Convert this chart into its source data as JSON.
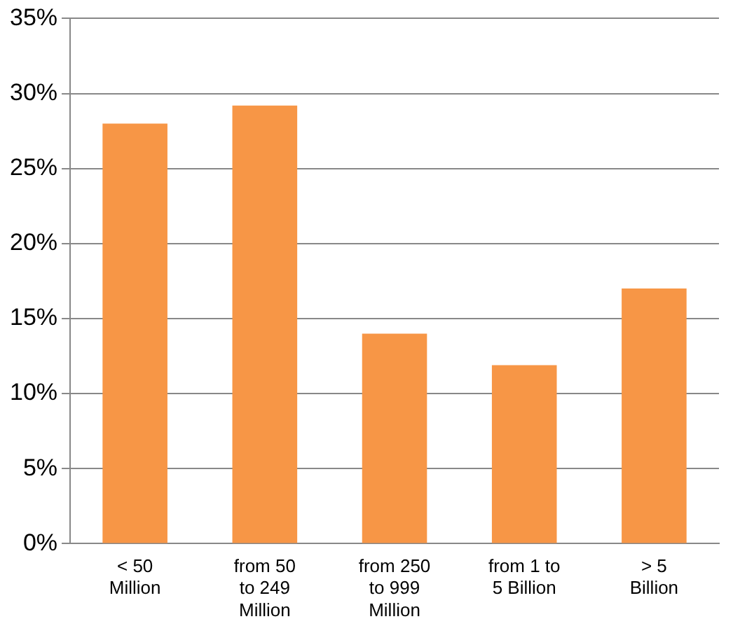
{
  "chart_data": {
    "type": "bar",
    "categories": [
      "< 50 Million",
      "from 50 to 249 Million",
      "from 250 to 999 Million",
      "from 1 to 5 Billion",
      "> 5 Billion"
    ],
    "values": [
      28,
      29.2,
      14,
      11.9,
      17
    ],
    "color": "#f79646",
    "ylim": [
      0,
      35
    ],
    "yticks": [
      {
        "value": 0,
        "label": "0%"
      },
      {
        "value": 5,
        "label": "5%"
      },
      {
        "value": 10,
        "label": "10%"
      },
      {
        "value": 15,
        "label": "15%"
      },
      {
        "value": 20,
        "label": "20%"
      },
      {
        "value": 25,
        "label": "25%"
      },
      {
        "value": 30,
        "label": "30%"
      },
      {
        "value": 35,
        "label": "35%"
      }
    ],
    "grid": "y"
  }
}
